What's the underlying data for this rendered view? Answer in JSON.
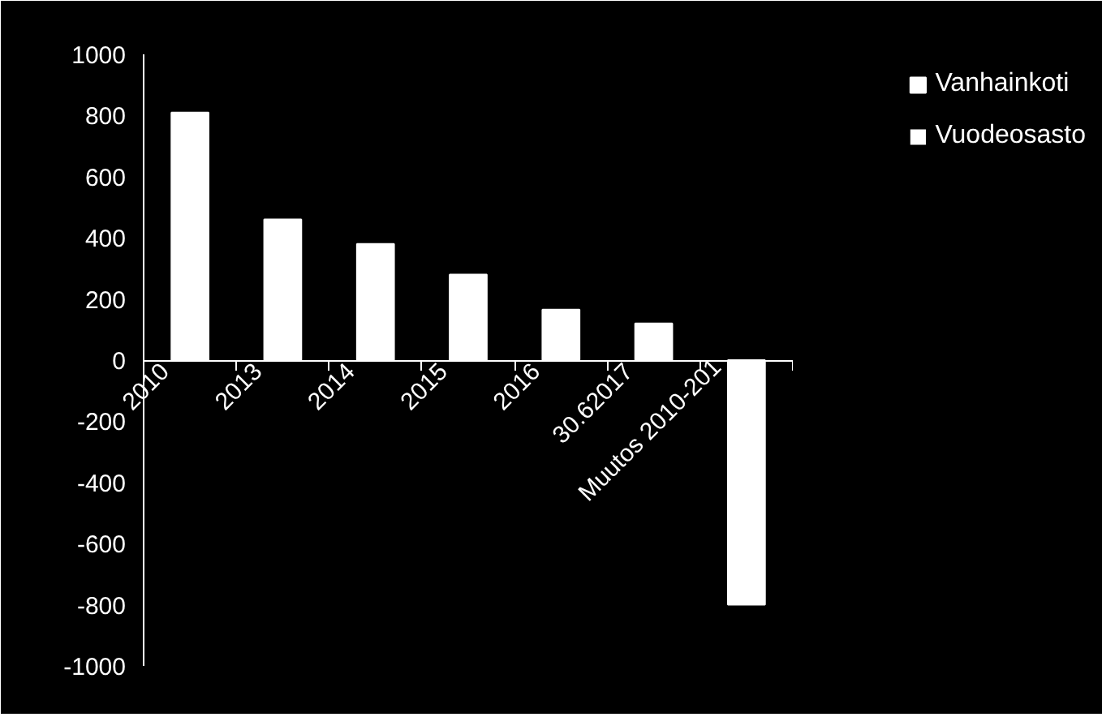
{
  "chart_data": {
    "type": "bar",
    "categories": [
      "2010",
      "2013",
      "2014",
      "2015",
      "2016",
      "30.62017",
      "Muutos 2010-201"
    ],
    "series": [
      {
        "name": "Vanhainkoti",
        "color": "#ffffff",
        "values": [
          810,
          460,
          380,
          280,
          165,
          120,
          -800
        ]
      },
      {
        "name": "Vuodeosasto",
        "color": "#ffffff",
        "values": [
          null,
          null,
          null,
          null,
          null,
          null,
          null
        ]
      }
    ],
    "ylim": [
      -1000,
      1000
    ],
    "yticks": [
      -1000,
      -800,
      -600,
      -400,
      -200,
      0,
      200,
      400,
      600,
      800,
      1000
    ],
    "legend": "right"
  }
}
